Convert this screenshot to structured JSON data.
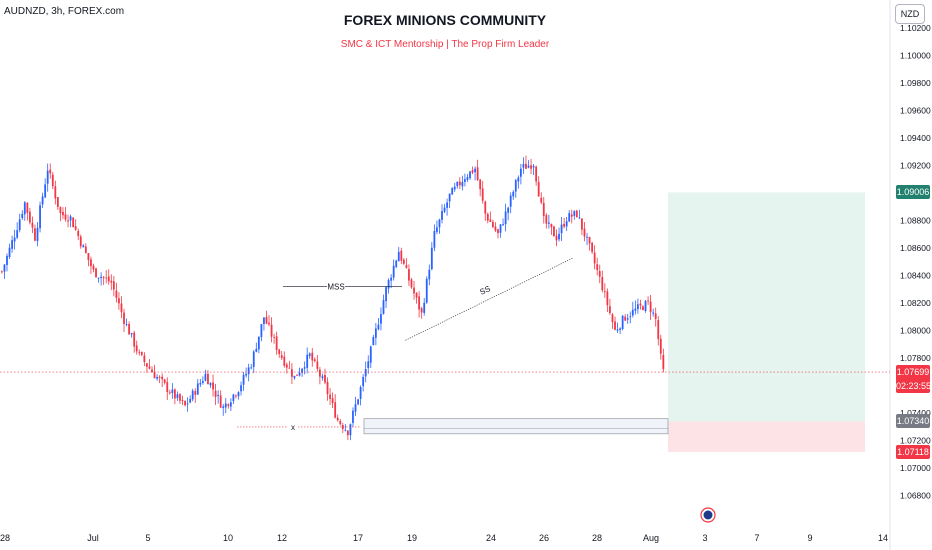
{
  "header": {
    "symbol": "AUDNZD, 3h, FOREX.com",
    "title": "FOREX MINIONS COMMUNITY",
    "subtitle": "SMC & ICT Mentorship | The Prop Firm Leader",
    "currency": "NZD"
  },
  "annotations": {
    "mss": "MSS",
    "ss": "SS",
    "x": "x"
  },
  "price_tags": {
    "target": "1.09006",
    "current": "1.07699",
    "countdown": "02:23:55",
    "entry": "1.07340",
    "stop": "1.07118"
  },
  "colors": {
    "bull": "#2962ff",
    "bear": "#f23645",
    "target_zone": "#e6f4f0",
    "stop_zone": "#fde3e5",
    "target_tag": "#22806e",
    "entry_tag": "#787b86"
  },
  "chart_data": {
    "type": "candlestick",
    "title": "FOREX MINIONS COMMUNITY",
    "subtitle": "SMC & ICT Mentorship | The Prop Firm Leader",
    "y_ticks": [
      "1.10200",
      "1.10000",
      "1.09800",
      "1.09600",
      "1.09400",
      "1.09200",
      "1.08800",
      "1.08600",
      "1.08400",
      "1.08200",
      "1.08000",
      "1.07800",
      "1.07400",
      "1.07200",
      "1.07000",
      "1.06800"
    ],
    "x_ticks": [
      "28",
      "Jul",
      "5",
      "10",
      "12",
      "17",
      "19",
      "24",
      "26",
      "28",
      "Aug",
      "3",
      "7",
      "9",
      "14"
    ],
    "ylim": [
      1.0675,
      1.1029
    ],
    "grid": false,
    "close_path": [
      {
        "i": 0,
        "c": 1.0843
      },
      {
        "i": 5,
        "c": 1.087
      },
      {
        "i": 9,
        "c": 1.0893
      },
      {
        "i": 13,
        "c": 1.0868
      },
      {
        "i": 18,
        "c": 1.0918
      },
      {
        "i": 23,
        "c": 1.0885
      },
      {
        "i": 27,
        "c": 1.0882
      },
      {
        "i": 32,
        "c": 1.086
      },
      {
        "i": 36,
        "c": 1.0843
      },
      {
        "i": 43,
        "c": 1.0835
      },
      {
        "i": 48,
        "c": 1.0808
      },
      {
        "i": 54,
        "c": 1.0782
      },
      {
        "i": 60,
        "c": 1.0768
      },
      {
        "i": 66,
        "c": 1.0756
      },
      {
        "i": 72,
        "c": 1.0745
      },
      {
        "i": 80,
        "c": 1.0768
      },
      {
        "i": 87,
        "c": 1.0744
      },
      {
        "i": 93,
        "c": 1.0758
      },
      {
        "i": 98,
        "c": 1.0776
      },
      {
        "i": 103,
        "c": 1.081
      },
      {
        "i": 109,
        "c": 1.0784
      },
      {
        "i": 115,
        "c": 1.0766
      },
      {
        "i": 121,
        "c": 1.0782
      },
      {
        "i": 127,
        "c": 1.076
      },
      {
        "i": 132,
        "c": 1.0735
      },
      {
        "i": 136,
        "c": 1.0727
      },
      {
        "i": 141,
        "c": 1.0758
      },
      {
        "i": 146,
        "c": 1.0792
      },
      {
        "i": 151,
        "c": 1.083
      },
      {
        "i": 156,
        "c": 1.0858
      },
      {
        "i": 160,
        "c": 1.0837
      },
      {
        "i": 165,
        "c": 1.0812
      },
      {
        "i": 170,
        "c": 1.087
      },
      {
        "i": 176,
        "c": 1.0898
      },
      {
        "i": 182,
        "c": 1.0912
      },
      {
        "i": 186,
        "c": 1.0918
      },
      {
        "i": 190,
        "c": 1.0885
      },
      {
        "i": 195,
        "c": 1.087
      },
      {
        "i": 199,
        "c": 1.089
      },
      {
        "i": 204,
        "c": 1.0918
      },
      {
        "i": 209,
        "c": 1.0922
      },
      {
        "i": 213,
        "c": 1.088
      },
      {
        "i": 218,
        "c": 1.0868
      },
      {
        "i": 222,
        "c": 1.0882
      },
      {
        "i": 226,
        "c": 1.0885
      },
      {
        "i": 231,
        "c": 1.086
      },
      {
        "i": 236,
        "c": 1.0832
      },
      {
        "i": 241,
        "c": 1.08
      },
      {
        "i": 245,
        "c": 1.081
      },
      {
        "i": 249,
        "c": 1.0815
      },
      {
        "i": 254,
        "c": 1.082
      },
      {
        "i": 257,
        "c": 1.0808
      },
      {
        "i": 259,
        "c": 1.078
      },
      {
        "i": 260,
        "c": 1.077
      }
    ],
    "levels": {
      "target": 1.09006,
      "current": 1.07699,
      "entry": 1.0734,
      "stop": 1.07118,
      "zone_top": 1.0736,
      "zone_bottom": 1.0725,
      "mss": 1.0832,
      "low_x": 1.073
    },
    "trendline": {
      "from": {
        "i": 159,
        "c": 1.0793
      },
      "to": {
        "i": 225,
        "c": 1.0853
      }
    }
  }
}
